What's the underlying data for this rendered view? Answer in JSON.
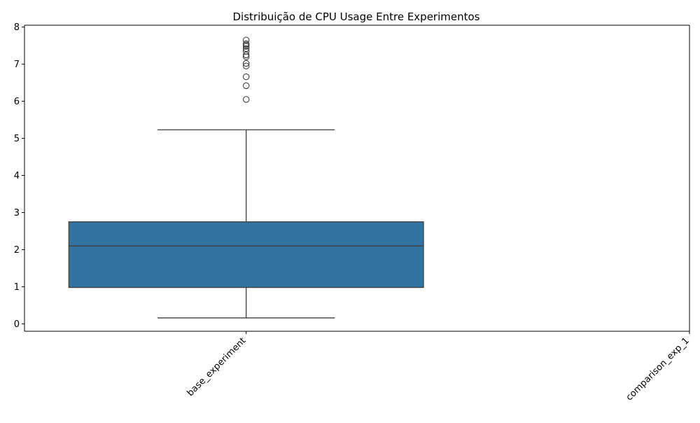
{
  "chart_data": {
    "type": "box",
    "title": "Distribuição de CPU Usage Entre Experimentos",
    "xlabel": "",
    "ylabel": "",
    "categories": [
      "base_experiment",
      "comparison_exp_1"
    ],
    "ylim": [
      -0.2,
      8.05
    ],
    "yticks": [
      0,
      1,
      2,
      3,
      4,
      5,
      6,
      7,
      8
    ],
    "grid": false,
    "colors": {
      "box_fill": "#3274a1",
      "line": "#3f3f3f"
    },
    "boxes": [
      {
        "category": "base_experiment",
        "whisker_low": 0.16,
        "q1": 0.98,
        "median": 2.1,
        "q3": 2.75,
        "whisker_high": 5.23,
        "outliers": [
          6.05,
          6.42,
          6.66,
          6.95,
          7.02,
          7.2,
          7.25,
          7.35,
          7.42,
          7.48,
          7.52,
          7.55,
          7.65
        ]
      }
    ]
  }
}
